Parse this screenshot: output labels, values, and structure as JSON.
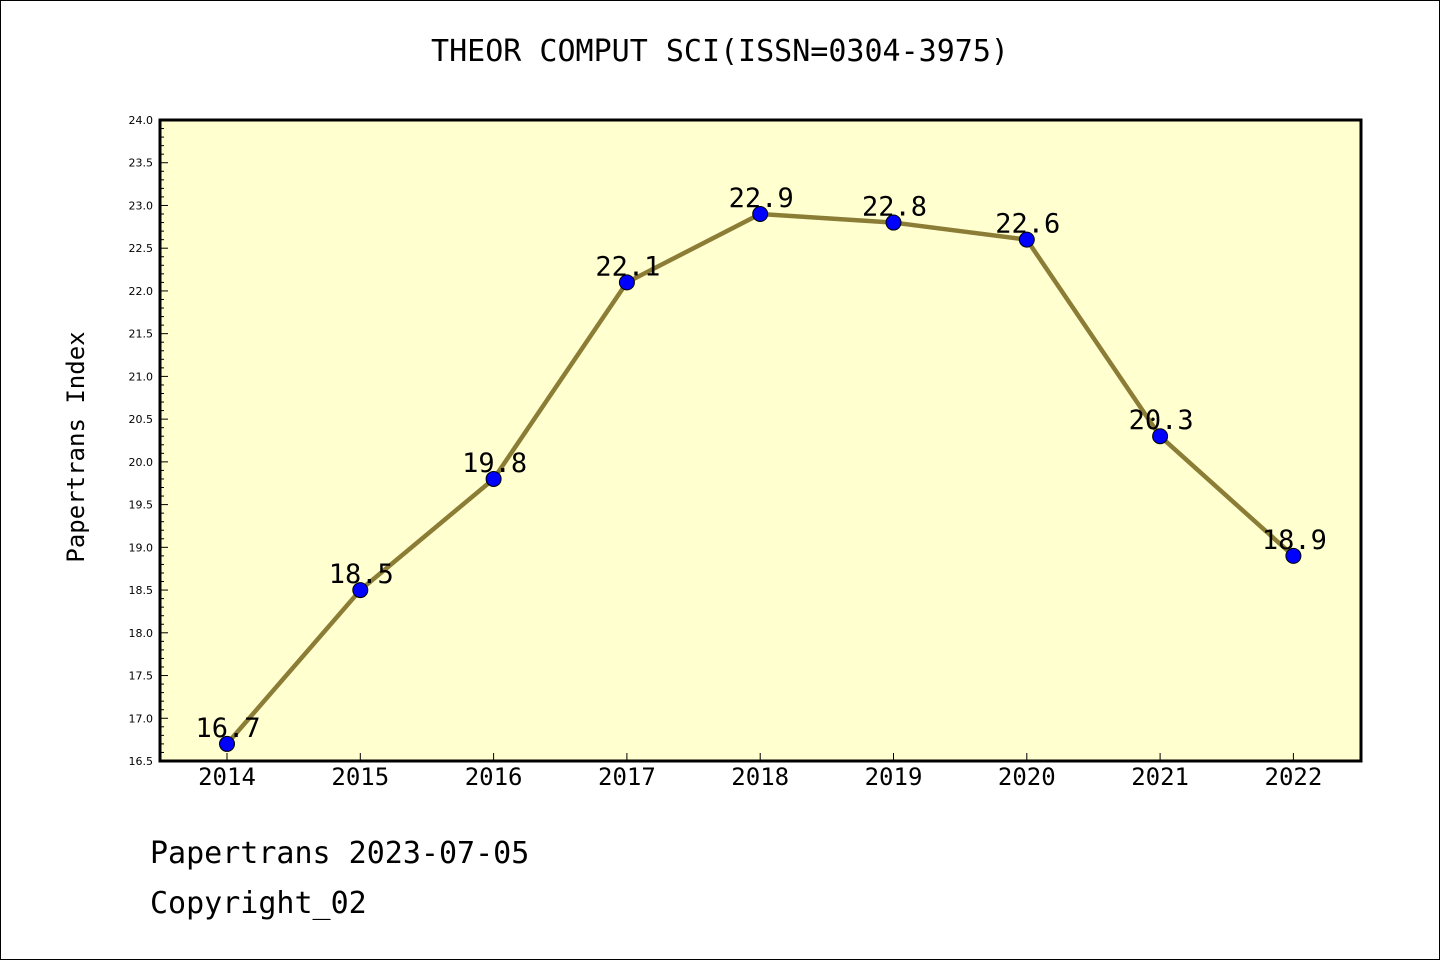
{
  "chart_data": {
    "type": "line",
    "title": "THEOR COMPUT SCI(ISSN=0304-3975)",
    "ylabel": "Papertrans Index",
    "xlabel": "",
    "categories": [
      "2014",
      "2015",
      "2016",
      "2017",
      "2018",
      "2019",
      "2020",
      "2021",
      "2022"
    ],
    "values": [
      16.7,
      18.5,
      19.8,
      22.1,
      22.9,
      22.8,
      22.6,
      20.3,
      18.9
    ],
    "data_labels": [
      "16.7",
      "18.5",
      "19.8",
      "22.1",
      "22.9",
      "22.8",
      "22.6",
      "20.3",
      "18.9"
    ],
    "ylim": [
      16.5,
      24.0
    ],
    "yticks": [
      "16.5",
      "17.0",
      "17.5",
      "18.0",
      "18.5",
      "19.0",
      "19.5",
      "20.0",
      "20.5",
      "21.0",
      "21.5",
      "22.0",
      "22.5",
      "23.0",
      "23.5",
      "24.0"
    ],
    "grid": false,
    "colors": {
      "line": "#8b7d35",
      "marker": "#0000ff",
      "plot_background": "#ffffd0"
    }
  },
  "footer": {
    "line1": "Papertrans 2023-07-05",
    "line2": "Copyright_02"
  }
}
